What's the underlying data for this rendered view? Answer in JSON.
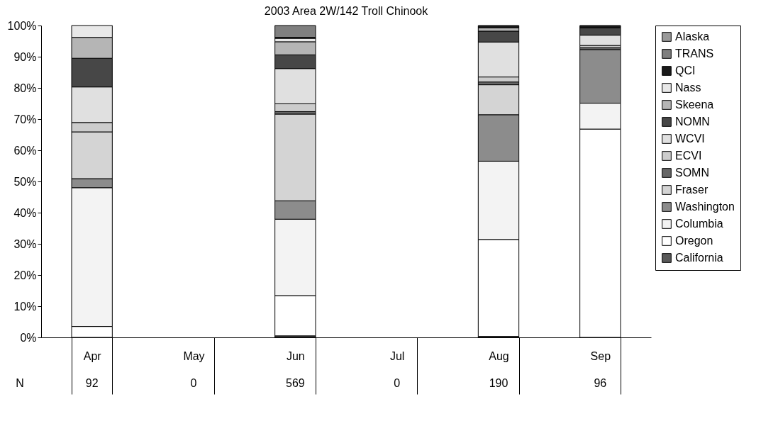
{
  "chart_data": {
    "type": "bar",
    "title": "2003 Area 2W/142 Troll Chinook",
    "stacked": true,
    "legend": "right",
    "categories": [
      "Apr",
      "May",
      "Jun",
      "Jul",
      "Aug",
      "Sep"
    ],
    "ylim": [
      0,
      100
    ],
    "yticks": [
      {
        "value": 0,
        "label": "0%"
      },
      {
        "value": 10,
        "label": "10%"
      },
      {
        "value": 20,
        "label": "20%"
      },
      {
        "value": 30,
        "label": "30%"
      },
      {
        "value": 40,
        "label": "40%"
      },
      {
        "value": 50,
        "label": "50%"
      },
      {
        "value": 60,
        "label": "60%"
      },
      {
        "value": 70,
        "label": "70%"
      },
      {
        "value": 80,
        "label": "80%"
      },
      {
        "value": 90,
        "label": "90%"
      },
      {
        "value": 100,
        "label": "100%"
      }
    ],
    "grid": false,
    "series": [
      {
        "name": "California",
        "color": "#595959",
        "values": [
          null,
          null,
          0.5,
          null,
          0.3,
          null
        ]
      },
      {
        "name": "Oregon",
        "color": "#ffffff",
        "values": [
          3.5,
          null,
          12.9,
          null,
          31.1,
          66.8
        ]
      },
      {
        "name": "Columbia",
        "color": "#f3f3f3",
        "values": [
          44.5,
          null,
          24.5,
          null,
          25.1,
          8.3
        ]
      },
      {
        "name": "Washington",
        "color": "#8c8c8c",
        "values": [
          2.9,
          null,
          5.9,
          null,
          14.9,
          17.2
        ]
      },
      {
        "name": "Fraser",
        "color": "#d4d4d4",
        "values": [
          15.0,
          null,
          27.8,
          null,
          9.6,
          null
        ]
      },
      {
        "name": "SOMN",
        "color": "#666666",
        "values": [
          null,
          null,
          0.8,
          null,
          0.9,
          0.6
        ]
      },
      {
        "name": "ECVI",
        "color": "#cccccc",
        "values": [
          3.0,
          null,
          2.5,
          null,
          1.6,
          0.7
        ]
      },
      {
        "name": "WCVI",
        "color": "#e0e0e0",
        "values": [
          11.4,
          null,
          11.3,
          null,
          11.2,
          3.3
        ]
      },
      {
        "name": "NOMN",
        "color": "#474747",
        "values": [
          9.2,
          null,
          4.4,
          null,
          3.5,
          2.4
        ]
      },
      {
        "name": "Skeena",
        "color": "#b5b5b5",
        "values": [
          6.7,
          null,
          4.2,
          null,
          1.1,
          null
        ]
      },
      {
        "name": "Nass",
        "color": "#e8e8e8",
        "values": [
          3.8,
          null,
          1.1,
          null,
          null,
          null
        ]
      },
      {
        "name": "QCI",
        "color": "#1a1a1a",
        "values": [
          null,
          null,
          0.3,
          null,
          0.7,
          0.7
        ]
      },
      {
        "name": "TRANS",
        "color": "#7f7f7f",
        "values": [
          null,
          null,
          3.8,
          null,
          null,
          null
        ]
      },
      {
        "name": "Alaska",
        "color": "#999999",
        "values": [
          null,
          null,
          null,
          null,
          null,
          null
        ]
      }
    ],
    "annotations": [
      "N",
      "92",
      "0",
      "569",
      "0",
      "190",
      "96"
    ]
  }
}
